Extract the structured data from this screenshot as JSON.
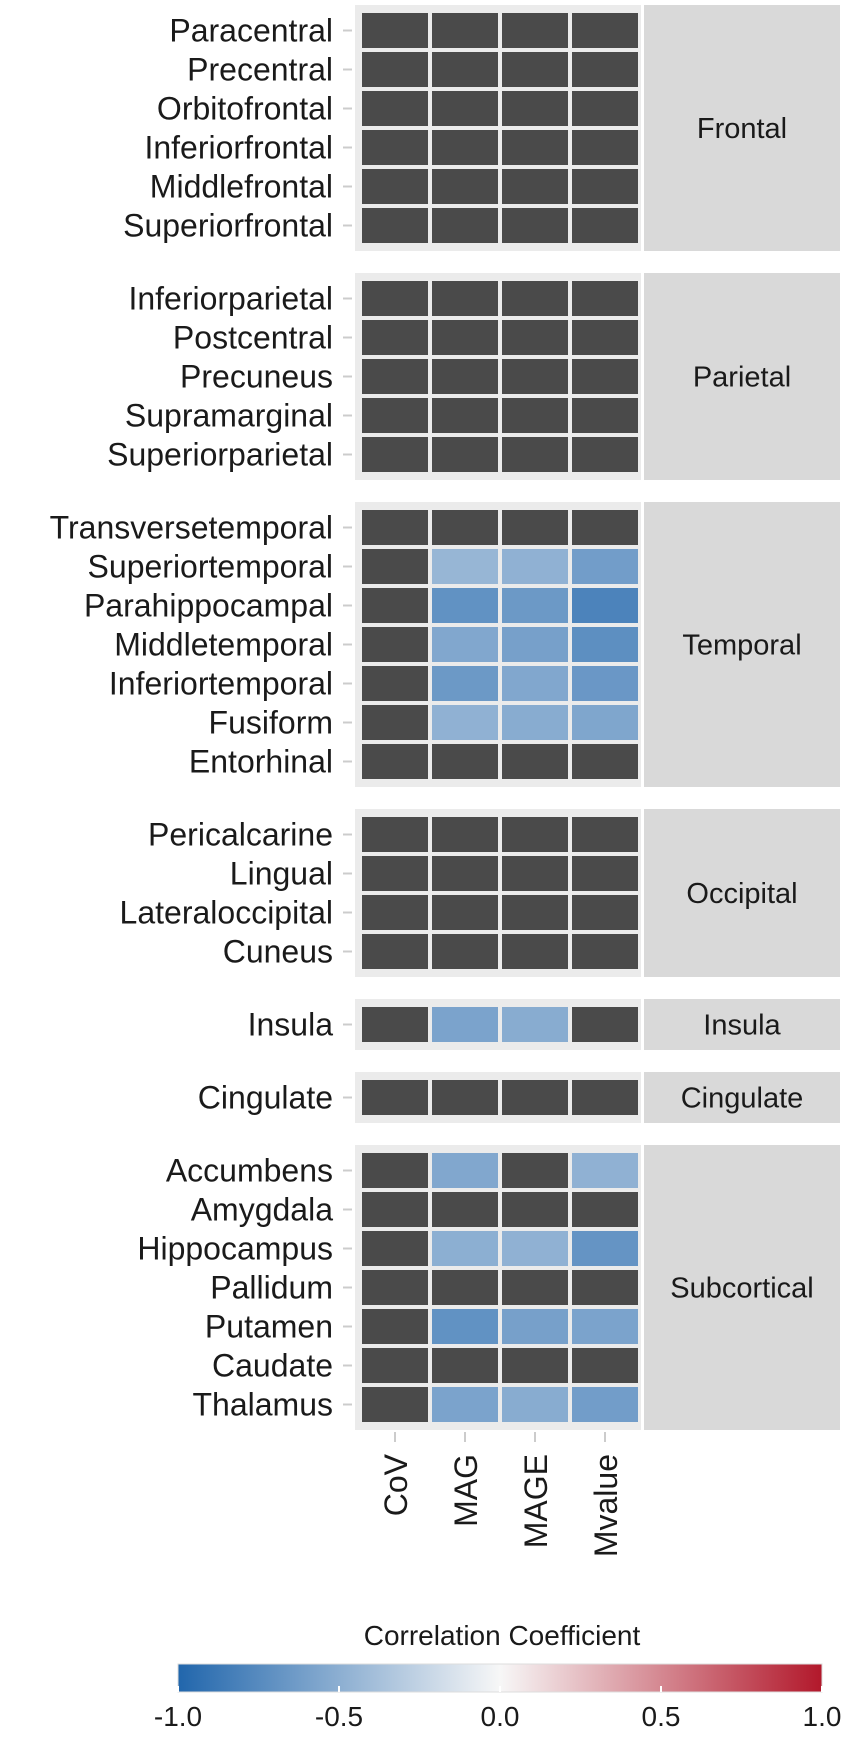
{
  "chart_data": {
    "type": "heatmap",
    "columns": [
      "CoV",
      "MAG",
      "MAGE",
      "Mvalue"
    ],
    "colors": {
      "non_significant": "#4a4a4a",
      "panel_background": "#ebebeb",
      "strip_background": "#d9d9d9",
      "scale_low": "#2166ac",
      "scale_mid": "#f7f7f7",
      "scale_high": "#b2182b"
    },
    "facets": [
      {
        "label": "Frontal",
        "rows": [
          {
            "name": "Paracentral",
            "values": [
              null,
              null,
              null,
              null
            ]
          },
          {
            "name": "Precentral",
            "values": [
              null,
              null,
              null,
              null
            ]
          },
          {
            "name": "Orbitofrontal",
            "values": [
              null,
              null,
              null,
              null
            ]
          },
          {
            "name": "Inferiorfrontal",
            "values": [
              null,
              null,
              null,
              null
            ]
          },
          {
            "name": "Middlefrontal",
            "values": [
              null,
              null,
              null,
              null
            ]
          },
          {
            "name": "Superiorfrontal",
            "values": [
              null,
              null,
              null,
              null
            ]
          }
        ]
      },
      {
        "label": "Parietal",
        "rows": [
          {
            "name": "Inferiorparietal",
            "values": [
              null,
              null,
              null,
              null
            ]
          },
          {
            "name": "Postcentral",
            "values": [
              null,
              null,
              null,
              null
            ]
          },
          {
            "name": "Precuneus",
            "values": [
              null,
              null,
              null,
              null
            ]
          },
          {
            "name": "Supramarginal",
            "values": [
              null,
              null,
              null,
              null
            ]
          },
          {
            "name": "Superiorparietal",
            "values": [
              null,
              null,
              null,
              null
            ]
          }
        ]
      },
      {
        "label": "Temporal",
        "rows": [
          {
            "name": "Transversetemporal",
            "values": [
              null,
              null,
              null,
              null
            ]
          },
          {
            "name": "Superiortemporal",
            "values": [
              null,
              -0.45,
              -0.48,
              -0.62
            ]
          },
          {
            "name": "Parahippocampal",
            "values": [
              null,
              -0.7,
              -0.65,
              -0.8
            ]
          },
          {
            "name": "Middletemporal",
            "values": [
              null,
              -0.55,
              -0.6,
              -0.72
            ]
          },
          {
            "name": "Inferiortemporal",
            "values": [
              null,
              -0.65,
              -0.55,
              -0.66
            ]
          },
          {
            "name": "Fusiform",
            "values": [
              null,
              -0.48,
              -0.52,
              -0.56
            ]
          },
          {
            "name": "Entorhinal",
            "values": [
              null,
              null,
              null,
              null
            ]
          }
        ]
      },
      {
        "label": "Occipital",
        "rows": [
          {
            "name": "Pericalcarine",
            "values": [
              null,
              null,
              null,
              null
            ]
          },
          {
            "name": "Lingual",
            "values": [
              null,
              null,
              null,
              null
            ]
          },
          {
            "name": "Lateraloccipital",
            "values": [
              null,
              null,
              null,
              null
            ]
          },
          {
            "name": "Cuneus",
            "values": [
              null,
              null,
              null,
              null
            ]
          }
        ]
      },
      {
        "label": "Insula",
        "rows": [
          {
            "name": "Insula",
            "values": [
              null,
              -0.58,
              -0.52,
              null
            ]
          }
        ]
      },
      {
        "label": "Cingulate",
        "rows": [
          {
            "name": "Cingulate",
            "values": [
              null,
              null,
              null,
              null
            ]
          }
        ]
      },
      {
        "label": "Subcortical",
        "rows": [
          {
            "name": "Accumbens",
            "values": [
              null,
              -0.55,
              null,
              -0.48
            ]
          },
          {
            "name": "Amygdala",
            "values": [
              null,
              null,
              null,
              null
            ]
          },
          {
            "name": "Hippocampus",
            "values": [
              null,
              -0.5,
              -0.48,
              -0.68
            ]
          },
          {
            "name": "Pallidum",
            "values": [
              null,
              null,
              null,
              null
            ]
          },
          {
            "name": "Putamen",
            "values": [
              null,
              -0.7,
              -0.6,
              -0.58
            ]
          },
          {
            "name": "Caudate",
            "values": [
              null,
              null,
              null,
              null
            ]
          },
          {
            "name": "Thalamus",
            "values": [
              null,
              -0.58,
              -0.52,
              -0.62
            ]
          }
        ]
      }
    ],
    "legend": {
      "title": "Correlation Coefficient",
      "range": [
        -1.0,
        1.0
      ],
      "ticks": [
        "-1.0",
        "-0.5",
        "0.0",
        "0.5",
        "1.0"
      ],
      "placement": "bottom"
    }
  }
}
